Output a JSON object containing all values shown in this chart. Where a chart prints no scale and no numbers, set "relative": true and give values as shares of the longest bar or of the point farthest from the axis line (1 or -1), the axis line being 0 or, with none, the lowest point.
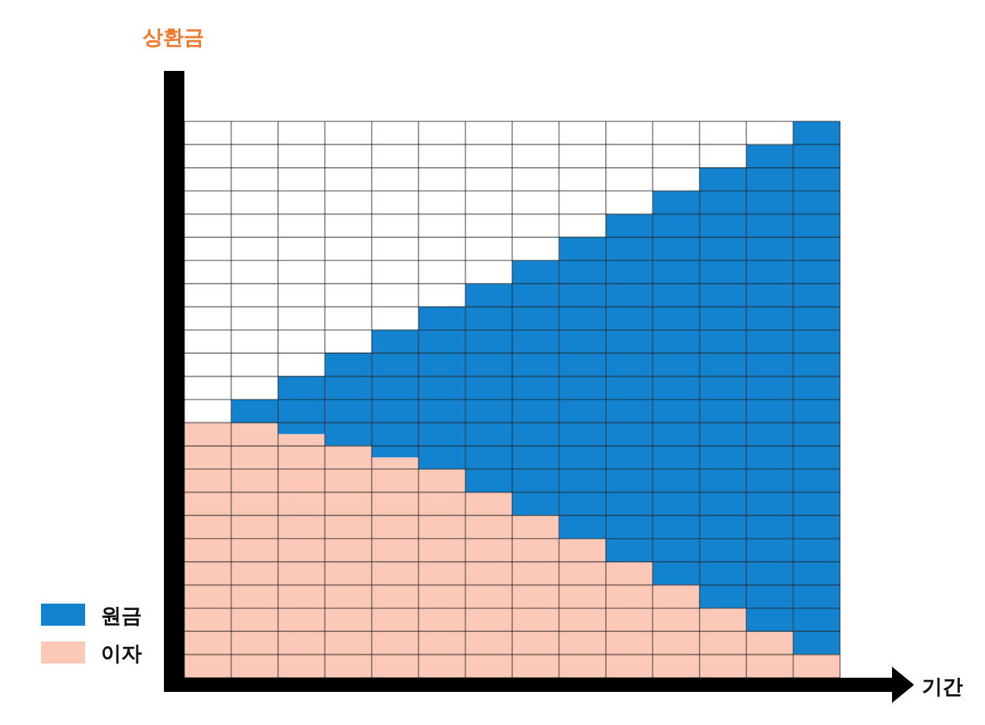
{
  "chart_data": {
    "type": "bar",
    "stacked": true,
    "relative": true,
    "ylabel": "상환금",
    "xlabel": "기간",
    "categories": [
      null,
      null,
      null,
      null,
      null,
      null,
      null,
      null,
      null,
      null,
      null,
      null,
      null,
      null
    ],
    "series": [
      {
        "name": "이자",
        "color": "#fcc8b8",
        "values": [
          0.458,
          0.458,
          0.438,
          0.417,
          0.396,
          0.375,
          0.333,
          0.292,
          0.25,
          0.208,
          0.167,
          0.125,
          0.083,
          0.042
        ]
      },
      {
        "name": "원금",
        "color": "#1383d0",
        "values": [
          0,
          0.042,
          0.104,
          0.167,
          0.229,
          0.292,
          0.375,
          0.458,
          0.542,
          0.625,
          0.708,
          0.792,
          0.875,
          0.958
        ]
      }
    ],
    "grid": true,
    "legend": "bottom left"
  }
}
